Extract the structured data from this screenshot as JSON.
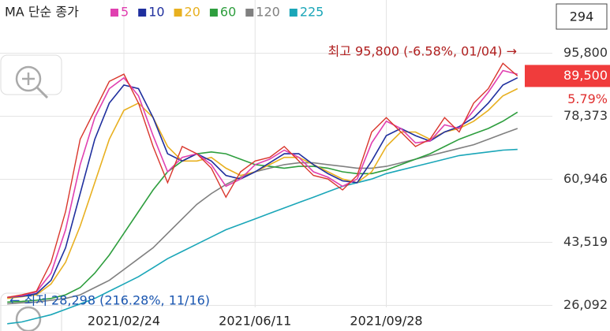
{
  "chart_data": {
    "type": "line",
    "legend_title": "MA 단순 종가",
    "categories": [
      null,
      null,
      null,
      null,
      null,
      null,
      null,
      null,
      "2021/02/24",
      null,
      null,
      null,
      null,
      null,
      null,
      null,
      null,
      "2021/06/11",
      null,
      null,
      null,
      null,
      null,
      null,
      null,
      null,
      "2021/09/28",
      null,
      null,
      null,
      null,
      null,
      null,
      null,
      null,
      null
    ],
    "price_color": "#d9362c",
    "values": [
      28300,
      29000,
      30000,
      38000,
      52000,
      72000,
      80000,
      88000,
      90000,
      82000,
      70000,
      60000,
      70000,
      68000,
      64000,
      56000,
      63000,
      66000,
      67000,
      70000,
      66000,
      62000,
      61000,
      58000,
      62000,
      74000,
      78000,
      74000,
      70000,
      72000,
      78000,
      74000,
      82000,
      86000,
      93000,
      89500
    ],
    "series": [
      {
        "name": "5",
        "color": "#e040b0",
        "values": [
          28300,
          28800,
          29800,
          35000,
          47000,
          65000,
          78000,
          86000,
          89000,
          84000,
          73000,
          63000,
          67000,
          68000,
          65000,
          59000,
          61000,
          65000,
          66500,
          69000,
          67000,
          63000,
          61500,
          59000,
          61000,
          71000,
          77000,
          75000,
          71000,
          71500,
          76000,
          75000,
          80000,
          85000,
          91000,
          90000
        ]
      },
      {
        "name": "10",
        "color": "#1f2f9e",
        "values": [
          28300,
          28600,
          29300,
          33000,
          42000,
          57000,
          72000,
          82000,
          87000,
          86000,
          78000,
          68000,
          66000,
          68000,
          66000,
          62000,
          61000,
          63000,
          65500,
          68000,
          68000,
          65000,
          62500,
          60500,
          60000,
          66000,
          73000,
          75000,
          73000,
          71500,
          74000,
          75500,
          78000,
          82000,
          87000,
          89000
        ]
      },
      {
        "name": "20",
        "color": "#e8b020",
        "values": [
          28000,
          28500,
          29000,
          32000,
          38000,
          48000,
          60000,
          72000,
          80000,
          82000,
          78000,
          70000,
          66000,
          66000,
          67000,
          64000,
          62000,
          63000,
          65000,
          67000,
          67000,
          65000,
          63000,
          61000,
          60000,
          63000,
          70000,
          74000,
          74000,
          72000,
          74000,
          75000,
          77000,
          80000,
          84000,
          86000
        ]
      },
      {
        "name": "60",
        "color": "#2e9e3e",
        "values": [
          27000,
          27200,
          27500,
          28000,
          29000,
          31000,
          35000,
          40000,
          46000,
          52000,
          58000,
          63000,
          66000,
          68000,
          68500,
          68000,
          66500,
          65000,
          64500,
          64000,
          64500,
          64500,
          64000,
          63000,
          62500,
          62500,
          63500,
          65000,
          66500,
          68000,
          70000,
          72000,
          73500,
          75000,
          77000,
          79500
        ]
      },
      {
        "name": "120",
        "color": "#808080",
        "values": [
          26500,
          26800,
          27000,
          27500,
          28000,
          29000,
          31000,
          33000,
          36000,
          39000,
          42000,
          46000,
          50000,
          54000,
          57000,
          59500,
          61500,
          63000,
          64000,
          65000,
          65500,
          65500,
          65000,
          64500,
          64000,
          64000,
          64500,
          65500,
          66500,
          67500,
          68500,
          69500,
          70500,
          72000,
          73500,
          75000
        ]
      },
      {
        "name": "225",
        "color": "#1aa6b8",
        "values": [
          21000,
          21500,
          22500,
          23500,
          25000,
          26500,
          28000,
          30000,
          32000,
          34000,
          36500,
          39000,
          41000,
          43000,
          45000,
          47000,
          48500,
          50000,
          51500,
          53000,
          54500,
          56000,
          57500,
          59000,
          60000,
          61000,
          62500,
          63500,
          64500,
          65500,
          66500,
          67500,
          68000,
          68500,
          69000,
          69200
        ]
      }
    ],
    "ylim": [
      19000,
      110500
    ],
    "yticks": [
      {
        "value": 26092,
        "label": "26,092"
      },
      {
        "value": 43519,
        "label": "43,519"
      },
      {
        "value": 60946,
        "label": "60,946"
      },
      {
        "value": 78373,
        "label": "78,373"
      },
      {
        "value": 95800,
        "label": "95,800"
      }
    ],
    "grid": true,
    "current_price": {
      "value": 89500,
      "label": "89,500"
    },
    "change_label": "5.79%",
    "count_label": "294",
    "high_annotation": "최고 95,800 (-6.58%, 01/04) →",
    "low_annotation": "← 최저 28,298 (216.28%, 11/16)"
  }
}
